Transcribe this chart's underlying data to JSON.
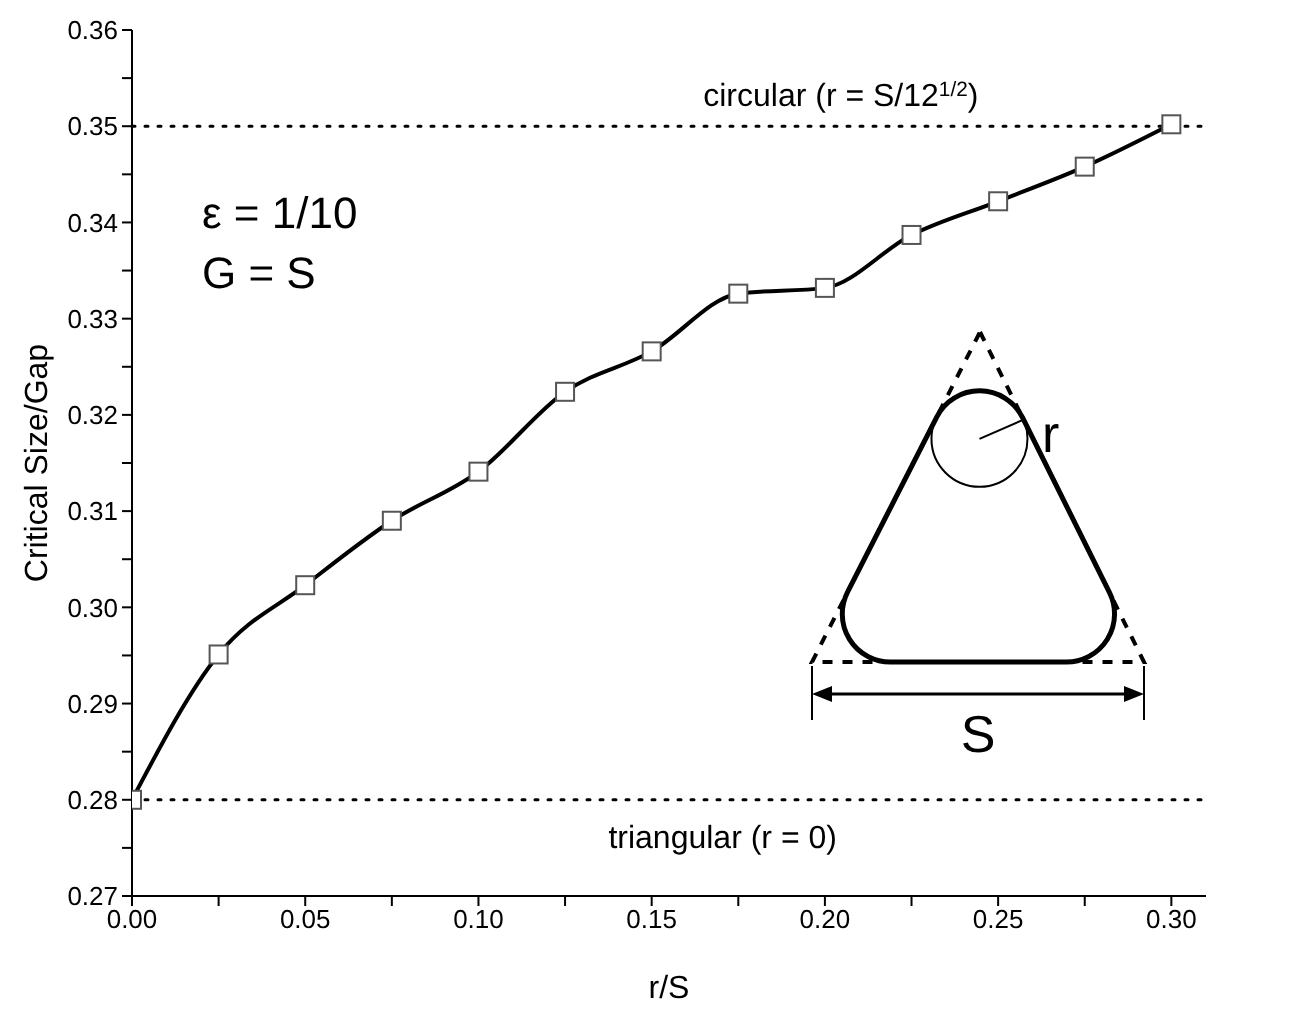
{
  "chart_data": {
    "type": "line",
    "xlabel": "r/S",
    "ylabel": "Critical Size/Gap",
    "x": [
      0,
      0.025,
      0.05,
      0.075,
      0.1,
      0.125,
      0.15,
      0.175,
      0.2,
      0.225,
      0.25,
      0.275,
      0.3
    ],
    "series": [
      {
        "color": "#000000",
        "values": [
          0.28,
          0.2951,
          0.3023,
          0.309,
          0.3141,
          0.3224,
          0.3266,
          0.3326,
          0.3332,
          0.3387,
          0.3422,
          0.3458,
          0.3502
        ]
      }
    ],
    "marker": "square",
    "line_style": "solid",
    "xlim": [
      0,
      0.31
    ],
    "xticks": [
      {
        "value": 0,
        "label": "0.00"
      },
      {
        "value": 0.025,
        "label": null
      },
      {
        "value": 0.05,
        "label": "0.05"
      },
      {
        "value": 0.075,
        "label": null
      },
      {
        "value": 0.1,
        "label": "0.10"
      },
      {
        "value": 0.125,
        "label": null
      },
      {
        "value": 0.15,
        "label": "0.15"
      },
      {
        "value": 0.175,
        "label": null
      },
      {
        "value": 0.2,
        "label": "0.20"
      },
      {
        "value": 0.225,
        "label": null
      },
      {
        "value": 0.25,
        "label": "0.25"
      },
      {
        "value": 0.275,
        "label": null
      },
      {
        "value": 0.3,
        "label": "0.30"
      }
    ],
    "ylim": [
      0.27,
      0.36
    ],
    "yticks": [
      0.27,
      {
        "value": 0.275,
        "label": null
      },
      0.28,
      {
        "value": 0.285,
        "label": null
      },
      0.29,
      {
        "value": 0.295,
        "label": null
      },
      {
        "value": 0.3,
        "label": "0.30"
      },
      {
        "value": 0.305,
        "label": null
      },
      0.31,
      {
        "value": 0.315,
        "label": null
      },
      0.32,
      {
        "value": 0.325,
        "label": null
      },
      0.33,
      {
        "value": 0.335,
        "label": null
      },
      0.34,
      {
        "value": 0.345,
        "label": null
      },
      0.35,
      {
        "value": 0.355,
        "label": null
      },
      0.36
    ],
    "ref_lines": [
      {
        "axis": "y",
        "value": 0.35,
        "label": "circular (r = S/12$^{1/2}$)",
        "line_style": "dotted",
        "color": "#000000"
      },
      {
        "axis": "y",
        "value": 0.28,
        "label": "triangular (r = 0)",
        "line_style": "dotted",
        "color": "#000000"
      }
    ],
    "annotations": [
      "ε = 1/10",
      "G = S",
      "r",
      "S"
    ]
  }
}
